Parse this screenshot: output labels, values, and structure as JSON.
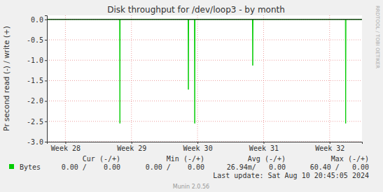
{
  "chart_data": {
    "type": "line",
    "title": "Disk throughput for /dev/loop3 - by month",
    "y_label": "Pr second read (-) / write (+)",
    "x": [
      27.72,
      28.82,
      28.825,
      28.83,
      29.857,
      29.862,
      29.867,
      29.953,
      29.958,
      29.963,
      30.831,
      30.836,
      30.841,
      32.238,
      32.243,
      32.248,
      32.49
    ],
    "series": [
      {
        "name": "Bytes",
        "color": "#00cc00",
        "values": [
          0,
          0,
          -2.55,
          0,
          0,
          -1.72,
          0,
          0,
          -2.55,
          0,
          0,
          -1.13,
          0,
          0,
          -2.55,
          0,
          0
        ]
      }
    ],
    "xlim": [
      27.72,
      32.49
    ],
    "xticks": [
      {
        "value": 28,
        "label": "Week 28"
      },
      {
        "value": 29,
        "label": "Week 29"
      },
      {
        "value": 30,
        "label": "Week 30"
      },
      {
        "value": 31,
        "label": "Week 31"
      },
      {
        "value": 32,
        "label": "Week 32"
      }
    ],
    "ylim": [
      -3.0,
      0.1
    ],
    "yticks": [
      {
        "value": 0,
        "label": "0.0"
      },
      -0.5,
      {
        "value": -1,
        "label": "-1.0"
      },
      -1.5,
      {
        "value": -2,
        "label": "-2.0"
      },
      -2.5,
      {
        "value": -3,
        "label": "-3.0"
      }
    ],
    "grid": true,
    "stats": {
      "headers": [
        "Cur (-/+)",
        "Min (-/+)",
        "Avg (-/+)",
        "Max (-/+)"
      ],
      "values": [
        "0.00 /    0.00",
        "0.00 /    0.00",
        "26.94m/   0.00",
        "60.40 /   0.00"
      ]
    },
    "last_update": "Last update: Sat Aug 10 20:45:05 2024",
    "credit": "Munin 2.0.56",
    "watermark": "RRDTOOL / TOBI OETIKER"
  }
}
